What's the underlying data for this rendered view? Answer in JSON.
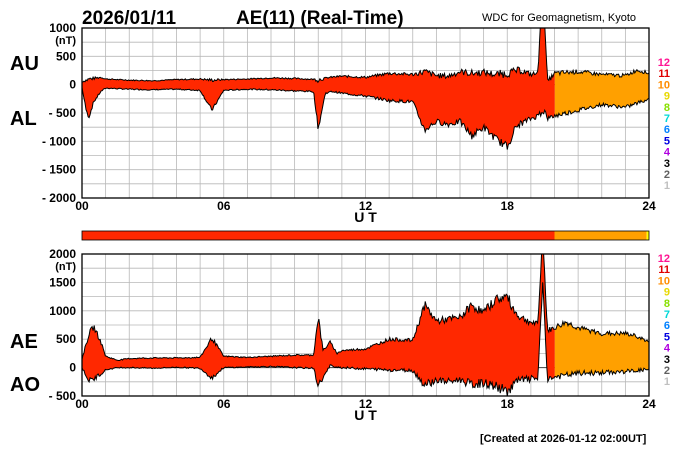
{
  "header": {
    "date": "2026/01/11",
    "title": "AE(11) (Real-Time)",
    "source": "WDC for Geomagnetism, Kyoto"
  },
  "footer": {
    "created": "[Created at 2026-01-12 02:00UT]"
  },
  "time_scale": {
    "levels": [
      "12",
      "11",
      "10",
      "9",
      "8",
      "7",
      "6",
      "5",
      "4",
      "3",
      "2",
      "1"
    ],
    "colors": [
      "#ff1493",
      "#e00000",
      "#ff8c00",
      "#e8d800",
      "#88e000",
      "#00d8d8",
      "#0080ff",
      "#0000e0",
      "#b000e0",
      "#000000",
      "#606060",
      "#c0c0c0"
    ],
    "bar": [
      {
        "from_ut": 0,
        "to_ut": 20,
        "color": "#ff2800"
      },
      {
        "from_ut": 20,
        "to_ut": 23.9,
        "color": "#ffa000"
      },
      {
        "from_ut": 23.9,
        "to_ut": 24,
        "color": "#ffff00"
      }
    ]
  },
  "chart_data": [
    {
      "type": "area",
      "name": "AU/AL",
      "unit": "(nT)",
      "labels_left": [
        "AU",
        "AL"
      ],
      "xlabel": "U T",
      "xlim": [
        0,
        24
      ],
      "xticks": [
        "00",
        "06",
        "12",
        "18",
        "24"
      ],
      "ylim": [
        -2000,
        1000
      ],
      "yticks": [
        1000,
        500,
        0,
        -500,
        -1000,
        -1500,
        -2000
      ],
      "yticklabels": [
        "1000",
        "500",
        "0",
        "- 500",
        "- 1000",
        "- 1500",
        "- 2000"
      ],
      "grid": true,
      "colors": {
        "before_20ut": "#ff2800",
        "after_20ut": "#ffa000"
      },
      "series": [
        {
          "name": "AU",
          "x": [
            0,
            0.3,
            0.8,
            1,
            2,
            3,
            4,
            5,
            5.5,
            6,
            7,
            8,
            9,
            10,
            10.5,
            11,
            12,
            13,
            14,
            14.5,
            15,
            15.5,
            16,
            16.5,
            17,
            17.5,
            18,
            18.5,
            19,
            19.3,
            19.5,
            19.7,
            20,
            21,
            22,
            23,
            23.5,
            24
          ],
          "y": [
            50,
            100,
            130,
            100,
            80,
            70,
            90,
            100,
            80,
            90,
            100,
            120,
            110,
            90,
            130,
            150,
            130,
            200,
            180,
            230,
            160,
            150,
            230,
            200,
            220,
            180,
            200,
            260,
            180,
            200,
            2000,
            50,
            200,
            230,
            180,
            160,
            260,
            200
          ]
        },
        {
          "name": "AL",
          "x": [
            0,
            0.2,
            0.3,
            0.5,
            0.8,
            1,
            2,
            3,
            4,
            5,
            5.5,
            6,
            7,
            8,
            9,
            9.8,
            10,
            10.3,
            10.6,
            11,
            12,
            13,
            14,
            14.5,
            15,
            15.5,
            16,
            16.5,
            17,
            17.5,
            18,
            18.3,
            18.5,
            19,
            19.3,
            19.5,
            19.7,
            20,
            21,
            22,
            23,
            24
          ],
          "y": [
            -50,
            -500,
            -560,
            -300,
            -120,
            -60,
            -80,
            -90,
            -80,
            -100,
            -450,
            -100,
            -80,
            -90,
            -110,
            -120,
            -780,
            -150,
            -120,
            -150,
            -200,
            -280,
            -300,
            -800,
            -650,
            -700,
            -650,
            -900,
            -750,
            -950,
            -1100,
            -800,
            -700,
            -600,
            -550,
            -400,
            -600,
            -550,
            -450,
            -350,
            -400,
            -250
          ]
        }
      ]
    },
    {
      "type": "area",
      "name": "AE/AO",
      "unit": "(nT)",
      "labels_left": [
        "AE",
        "AO"
      ],
      "xlabel": "U T",
      "xlim": [
        0,
        24
      ],
      "xticks": [
        "00",
        "06",
        "12",
        "18",
        "24"
      ],
      "ylim": [
        -500,
        2000
      ],
      "yticks": [
        2000,
        1500,
        1000,
        500,
        0,
        -500
      ],
      "yticklabels": [
        "2000",
        "1500",
        "1000",
        "500",
        "0",
        "- 500"
      ],
      "grid": true,
      "colors": {
        "before_20ut": "#ff2800",
        "after_20ut": "#ffa000"
      },
      "series": [
        {
          "name": "AE",
          "x": [
            0,
            0.3,
            0.5,
            0.8,
            1,
            1.5,
            2,
            3,
            4,
            5,
            5.5,
            6,
            7,
            8,
            9,
            9.8,
            10,
            10.2,
            10.5,
            10.8,
            11,
            12,
            13,
            14,
            14.5,
            15,
            15.5,
            16,
            16.5,
            17,
            17.5,
            18,
            18.3,
            18.5,
            19,
            19.3,
            19.5,
            19.7,
            20,
            20.5,
            21,
            22,
            23,
            23.5,
            24
          ],
          "y": [
            150,
            600,
            720,
            450,
            200,
            130,
            160,
            170,
            170,
            180,
            520,
            200,
            180,
            200,
            220,
            220,
            900,
            300,
            450,
            250,
            300,
            330,
            500,
            480,
            1100,
            820,
            850,
            880,
            1100,
            970,
            1200,
            1250,
            1000,
            900,
            800,
            750,
            2400,
            650,
            700,
            800,
            700,
            600,
            600,
            550,
            450
          ]
        },
        {
          "name": "AO",
          "x": [
            0,
            0.3,
            0.5,
            1,
            1.5,
            2,
            3,
            4,
            5,
            5.5,
            6,
            7,
            8,
            9,
            9.8,
            10,
            10.5,
            11,
            12,
            13,
            14,
            14.5,
            15,
            15.5,
            16,
            16.5,
            17,
            17.5,
            18,
            18.3,
            18.5,
            19,
            19.3,
            19.5,
            19.7,
            20,
            21,
            22,
            23,
            24
          ],
          "y": [
            0,
            -230,
            -200,
            -40,
            0,
            0,
            -10,
            5,
            -10,
            -180,
            0,
            10,
            20,
            0,
            -10,
            -320,
            30,
            0,
            -20,
            -40,
            -50,
            -300,
            -220,
            -250,
            -210,
            -300,
            -270,
            -330,
            -420,
            -280,
            -220,
            -200,
            -180,
            1500,
            -200,
            -170,
            -100,
            -90,
            -70,
            -30
          ]
        }
      ]
    }
  ]
}
